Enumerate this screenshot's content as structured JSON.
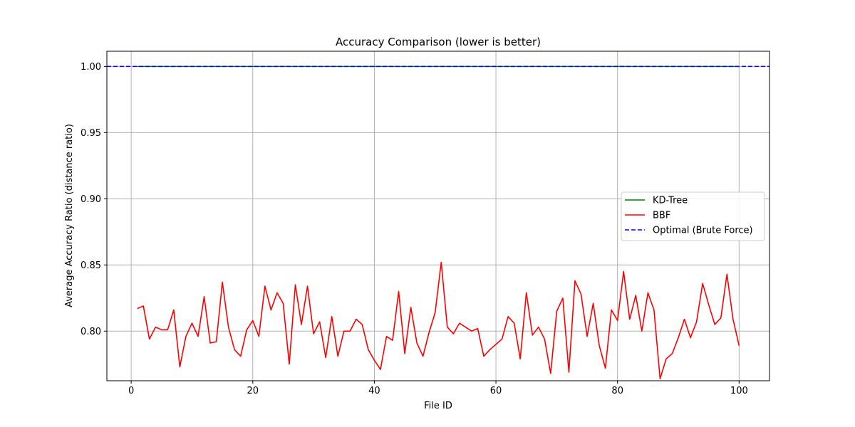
{
  "chart_data": {
    "type": "line",
    "title": "Accuracy Comparison (lower is better)",
    "xlabel": "File ID",
    "ylabel": "Average Accuracy Ratio (distance ratio)",
    "xlim": [
      -4,
      105
    ],
    "ylim": [
      0.7625,
      1.0115
    ],
    "x_ticks": [
      0,
      20,
      40,
      60,
      80,
      100
    ],
    "x_tick_labels": [
      "0",
      "20",
      "40",
      "60",
      "80",
      "100"
    ],
    "y_ticks": [
      0.8,
      0.85,
      0.9,
      0.95,
      1.0
    ],
    "y_tick_labels": [
      "0.80",
      "0.85",
      "0.90",
      "0.95",
      "1.00"
    ],
    "grid": true,
    "legend_position": "center-right",
    "series": [
      {
        "name": "KD-Tree",
        "color": "#008000",
        "style": "solid",
        "x": [
          1,
          100
        ],
        "values": [
          1.0,
          1.0
        ]
      },
      {
        "name": "BBF",
        "color": "#ff0000",
        "style": "solid",
        "x": [
          1,
          2,
          3,
          4,
          5,
          6,
          7,
          8,
          9,
          10,
          11,
          12,
          13,
          14,
          15,
          16,
          17,
          18,
          19,
          20,
          21,
          22,
          23,
          24,
          25,
          26,
          27,
          28,
          29,
          30,
          31,
          32,
          33,
          34,
          35,
          36,
          37,
          38,
          39,
          40,
          41,
          42,
          43,
          44,
          45,
          46,
          47,
          48,
          49,
          50,
          51,
          52,
          53,
          54,
          55,
          56,
          57,
          58,
          59,
          60,
          61,
          62,
          63,
          64,
          65,
          66,
          67,
          68,
          69,
          70,
          71,
          72,
          73,
          74,
          75,
          76,
          77,
          78,
          79,
          80,
          81,
          82,
          83,
          84,
          85,
          86,
          87,
          88,
          89,
          90,
          91,
          92,
          93,
          94,
          95,
          96,
          97,
          98,
          99,
          100
        ],
        "values": [
          0.817,
          0.819,
          0.794,
          0.803,
          0.801,
          0.801,
          0.816,
          0.773,
          0.796,
          0.806,
          0.796,
          0.826,
          0.791,
          0.792,
          0.837,
          0.803,
          0.786,
          0.781,
          0.801,
          0.808,
          0.796,
          0.834,
          0.816,
          0.829,
          0.821,
          0.775,
          0.835,
          0.805,
          0.834,
          0.798,
          0.807,
          0.78,
          0.811,
          0.781,
          0.8,
          0.8,
          0.809,
          0.805,
          0.786,
          0.778,
          0.771,
          0.796,
          0.793,
          0.83,
          0.783,
          0.818,
          0.791,
          0.781,
          0.799,
          0.814,
          0.852,
          0.803,
          0.798,
          0.806,
          0.803,
          0.8,
          0.802,
          0.781,
          0.786,
          0.79,
          0.794,
          0.811,
          0.806,
          0.779,
          0.829,
          0.797,
          0.803,
          0.794,
          0.768,
          0.815,
          0.825,
          0.769,
          0.838,
          0.828,
          0.796,
          0.821,
          0.789,
          0.772,
          0.816,
          0.808,
          0.845,
          0.809,
          0.827,
          0.8,
          0.829,
          0.816,
          0.764,
          0.779,
          0.783,
          0.795,
          0.809,
          0.795,
          0.807,
          0.836,
          0.82,
          0.805,
          0.81,
          0.843,
          0.809,
          0.789
        ]
      },
      {
        "name": "Optimal (Brute Force)",
        "color": "#0000ff",
        "style": "dashed",
        "x": [
          -4,
          105
        ],
        "values": [
          1.0,
          1.0
        ]
      }
    ]
  }
}
